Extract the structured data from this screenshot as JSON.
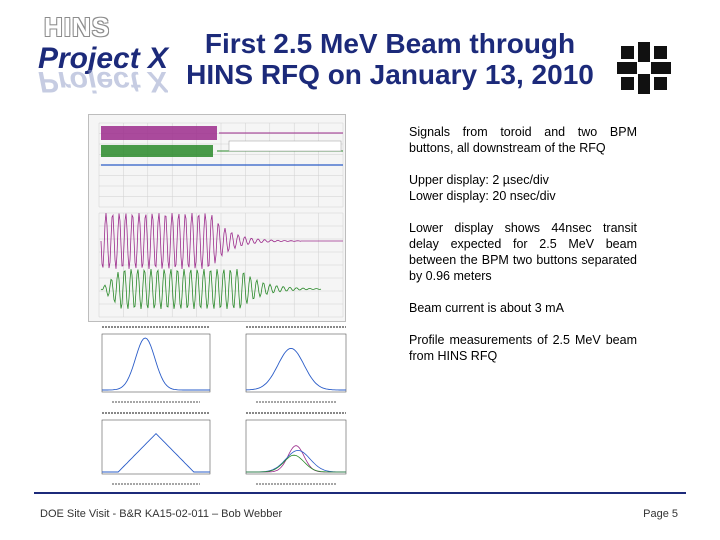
{
  "header": {
    "logo_top": "HINS",
    "logo_main": "Project X",
    "title_line1": "First 2.5 MeV Beam through",
    "title_line2": "HINS RFQ on January 13, 2010"
  },
  "bullets": [
    "Signals from toroid and two BPM buttons, all downstream of the RFQ",
    "Upper display: 2 µsec/div Lower display:  20 nsec/div",
    "Lower display shows 44nsec transit delay expected for 2.5 MeV beam between the BPM two buttons separated by 0.96 meters",
    "Beam current is about 3 mA",
    "Profile measurements of 2.5 MeV beam from HINS RFQ"
  ],
  "footer": {
    "left": "DOE Site Visit - B&R KA15-02-011 – Bob Webber",
    "right": "Page 5"
  },
  "colors": {
    "title": "#1c2a7a",
    "trace_magenta": "#9c2c8c",
    "trace_green": "#2a8a2a",
    "trace_blue": "#2a5cc8"
  },
  "icons": [
    "fermilab-logo-icon"
  ]
}
